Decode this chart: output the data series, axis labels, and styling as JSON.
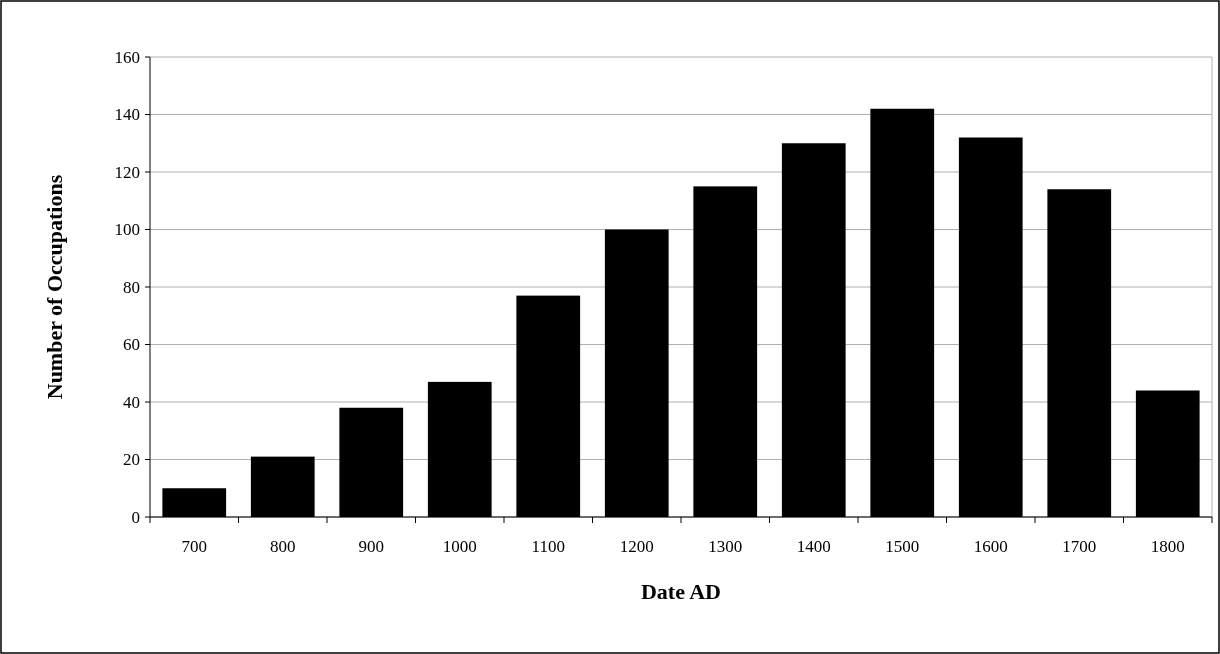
{
  "chart_data": {
    "type": "bar",
    "xlabel": "Date AD",
    "ylabel": "Number of Occupations",
    "categories": [
      "700",
      "800",
      "900",
      "1000",
      "1100",
      "1200",
      "1300",
      "1400",
      "1500",
      "1600",
      "1700",
      "1800"
    ],
    "values": [
      10,
      21,
      38,
      47,
      77,
      100,
      115,
      130,
      142,
      132,
      114,
      44
    ],
    "color": "#000000",
    "ylim": [
      0,
      160
    ],
    "yticks": [
      0,
      20,
      40,
      60,
      80,
      100,
      120,
      140,
      160
    ],
    "grid": "y"
  }
}
